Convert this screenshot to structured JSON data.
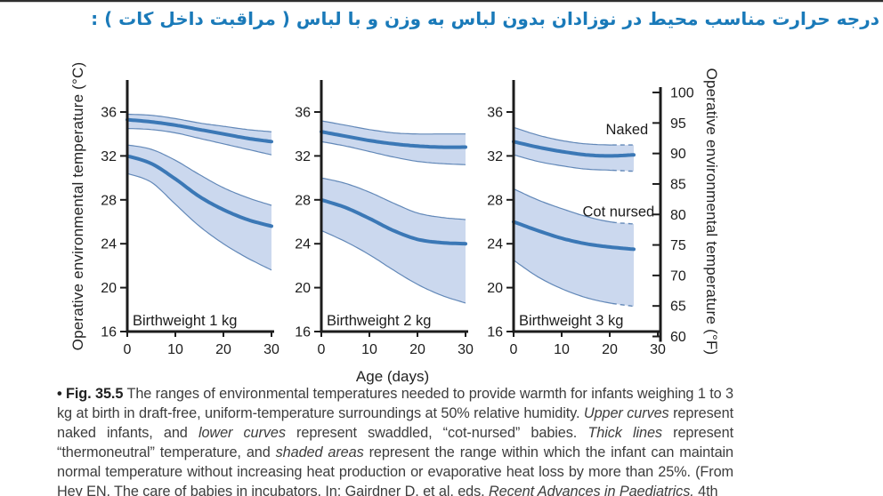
{
  "page": {
    "title_fa": "درجه حرارت مناسب محیط در نوزادان بدون لباس به وزن و با لباس ( مراقبت داخل کات ) :",
    "title_color": "#1a7ab9"
  },
  "figure": {
    "left_axis_label": "Operative environmental temperature (°C)",
    "right_axis_label": "Operative environmental temperature (°F)",
    "x_axis_label": "Age (days)",
    "colors": {
      "band_fill": "#cbd8ee",
      "band_edge": "#6288b8",
      "thick_line": "#3b78b6",
      "axis": "#1c1c1c"
    }
  },
  "chart_data": [
    {
      "type": "area",
      "title": "Birthweight 1 kg",
      "xlabel": "Age (days)",
      "ylabel": "Operative environmental temperature (°C)",
      "xlim": [
        0,
        30
      ],
      "ylim": [
        16,
        37.5
      ],
      "x_ticks": [
        0,
        10,
        20,
        30
      ],
      "y_ticks": [
        16,
        20,
        24,
        28,
        32,
        36
      ],
      "grid": false,
      "series": [
        {
          "name": "naked",
          "center": [
            [
              0,
              35.3
            ],
            [
              5,
              35.1
            ],
            [
              10,
              34.8
            ],
            [
              15,
              34.4
            ],
            [
              20,
              34.0
            ],
            [
              25,
              33.6
            ],
            [
              30,
              33.3
            ]
          ],
          "upper": [
            [
              0,
              35.8
            ],
            [
              5,
              35.7
            ],
            [
              10,
              35.4
            ],
            [
              15,
              35.0
            ],
            [
              20,
              34.7
            ],
            [
              25,
              34.4
            ],
            [
              30,
              34.2
            ]
          ],
          "lower": [
            [
              0,
              34.5
            ],
            [
              5,
              34.4
            ],
            [
              10,
              34.1
            ],
            [
              15,
              33.6
            ],
            [
              20,
              33.1
            ],
            [
              25,
              32.6
            ],
            [
              30,
              32.1
            ]
          ]
        },
        {
          "name": "cot-nursed",
          "center": [
            [
              0,
              32.0
            ],
            [
              5,
              31.3
            ],
            [
              10,
              29.9
            ],
            [
              15,
              28.3
            ],
            [
              20,
              27.1
            ],
            [
              25,
              26.2
            ],
            [
              30,
              25.6
            ]
          ],
          "upper": [
            [
              0,
              33.0
            ],
            [
              5,
              32.6
            ],
            [
              10,
              31.6
            ],
            [
              15,
              30.3
            ],
            [
              20,
              29.1
            ],
            [
              25,
              28.2
            ],
            [
              30,
              27.5
            ]
          ],
          "lower": [
            [
              0,
              30.4
            ],
            [
              5,
              29.6
            ],
            [
              10,
              27.6
            ],
            [
              15,
              25.6
            ],
            [
              20,
              24.0
            ],
            [
              25,
              22.7
            ],
            [
              30,
              21.6
            ]
          ]
        }
      ]
    },
    {
      "type": "area",
      "title": "Birthweight 2 kg",
      "xlabel": "Age (days)",
      "ylabel": "Operative environmental temperature (°C)",
      "xlim": [
        0,
        30
      ],
      "ylim": [
        16,
        37.5
      ],
      "x_ticks": [
        0,
        10,
        20,
        30
      ],
      "y_ticks": [
        16,
        20,
        24,
        28,
        32,
        36
      ],
      "grid": false,
      "series": [
        {
          "name": "naked",
          "center": [
            [
              0,
              34.2
            ],
            [
              5,
              33.8
            ],
            [
              10,
              33.4
            ],
            [
              15,
              33.1
            ],
            [
              20,
              32.9
            ],
            [
              25,
              32.8
            ],
            [
              30,
              32.8
            ]
          ],
          "upper": [
            [
              0,
              35.2
            ],
            [
              5,
              34.8
            ],
            [
              10,
              34.4
            ],
            [
              15,
              34.1
            ],
            [
              20,
              34.0
            ],
            [
              25,
              34.0
            ],
            [
              30,
              34.0
            ]
          ],
          "lower": [
            [
              0,
              33.3
            ],
            [
              5,
              32.9
            ],
            [
              10,
              32.4
            ],
            [
              15,
              31.9
            ],
            [
              20,
              31.5
            ],
            [
              25,
              31.3
            ],
            [
              30,
              31.2
            ]
          ]
        },
        {
          "name": "cot-nursed",
          "center": [
            [
              0,
              28.0
            ],
            [
              5,
              27.3
            ],
            [
              10,
              26.3
            ],
            [
              15,
              25.2
            ],
            [
              20,
              24.4
            ],
            [
              25,
              24.1
            ],
            [
              30,
              24.0
            ]
          ],
          "upper": [
            [
              0,
              30.0
            ],
            [
              5,
              29.5
            ],
            [
              10,
              28.7
            ],
            [
              15,
              27.7
            ],
            [
              20,
              26.8
            ],
            [
              25,
              26.4
            ],
            [
              30,
              26.2
            ]
          ],
          "lower": [
            [
              0,
              25.2
            ],
            [
              5,
              24.2
            ],
            [
              10,
              23.0
            ],
            [
              15,
              21.6
            ],
            [
              20,
              20.3
            ],
            [
              25,
              19.3
            ],
            [
              30,
              18.6
            ]
          ]
        }
      ]
    },
    {
      "type": "area",
      "title": "Birthweight 3 kg",
      "xlabel": "Age (days)",
      "ylabel": "Operative environmental temperature (°C)",
      "xlim": [
        0,
        30
      ],
      "ylim": [
        16,
        37.5
      ],
      "x_ticks": [
        0,
        10,
        20,
        30
      ],
      "y_ticks": [
        16,
        20,
        24,
        28,
        32,
        36
      ],
      "grid": false,
      "dashed_from": 20.5,
      "right_axis": {
        "label": "Operative environmental temperature (°F)",
        "ticks": [
          60,
          65,
          70,
          75,
          80,
          85,
          90,
          95,
          100
        ]
      },
      "annotations": [
        {
          "text": "Naked",
          "x": 28.0,
          "y": 34.4,
          "anchor": "end"
        },
        {
          "text": "Cot nursed",
          "x": 29.3,
          "y": 26.9,
          "anchor": "end"
        }
      ],
      "series": [
        {
          "name": "naked",
          "center": [
            [
              0,
              33.3
            ],
            [
              5,
              32.8
            ],
            [
              10,
              32.4
            ],
            [
              15,
              32.1
            ],
            [
              20,
              32.0
            ],
            [
              25,
              32.1
            ]
          ],
          "upper": [
            [
              0,
              34.6
            ],
            [
              5,
              33.9
            ],
            [
              10,
              33.4
            ],
            [
              15,
              33.1
            ],
            [
              20,
              33.0
            ],
            [
              25,
              33.0
            ]
          ],
          "lower": [
            [
              0,
              32.1
            ],
            [
              5,
              31.5
            ],
            [
              10,
              31.1
            ],
            [
              15,
              30.8
            ],
            [
              20,
              30.7
            ],
            [
              25,
              30.6
            ]
          ]
        },
        {
          "name": "cot-nursed",
          "center": [
            [
              0,
              26.0
            ],
            [
              5,
              25.2
            ],
            [
              10,
              24.5
            ],
            [
              15,
              24.0
            ],
            [
              20,
              23.7
            ],
            [
              25,
              23.5
            ]
          ],
          "upper": [
            [
              0,
              29.0
            ],
            [
              5,
              28.0
            ],
            [
              10,
              27.2
            ],
            [
              15,
              26.5
            ],
            [
              20,
              26.0
            ],
            [
              25,
              25.8
            ]
          ],
          "lower": [
            [
              0,
              22.5
            ],
            [
              5,
              21.0
            ],
            [
              10,
              19.9
            ],
            [
              15,
              19.1
            ],
            [
              20,
              18.6
            ],
            [
              25,
              18.3
            ]
          ]
        }
      ]
    }
  ],
  "caption": {
    "segments": [
      {
        "text": "• Fig. 35.5",
        "style": "bold"
      },
      {
        "text": "  The ranges of environmental temperatures needed to provide warmth for infants weighing 1 to 3 kg at birth in draft-free, uniform-temperature surroundings at 50% relative humidity. ",
        "style": "normal"
      },
      {
        "text": "Upper curves",
        "style": "italic"
      },
      {
        "text": " represent naked infants, and ",
        "style": "normal"
      },
      {
        "text": "lower curves",
        "style": "italic"
      },
      {
        "text": " represent swaddled, “cot-nursed” babies. ",
        "style": "normal"
      },
      {
        "text": "Thick lines",
        "style": "italic"
      },
      {
        "text": " represent “thermoneutral” temperature, and ",
        "style": "normal"
      },
      {
        "text": "shaded areas",
        "style": "italic"
      },
      {
        "text": " represent the range within which the infant can maintain normal temperature without increasing heat production or evaporative heat loss by more than 25%. (From Hey EN. The care of babies in incubators. In: Gairdner D, et al, eds. ",
        "style": "normal"
      },
      {
        "text": "Recent Advances in Paediatrics.",
        "style": "italic"
      },
      {
        "text": " 4th",
        "style": "normal"
      }
    ]
  }
}
